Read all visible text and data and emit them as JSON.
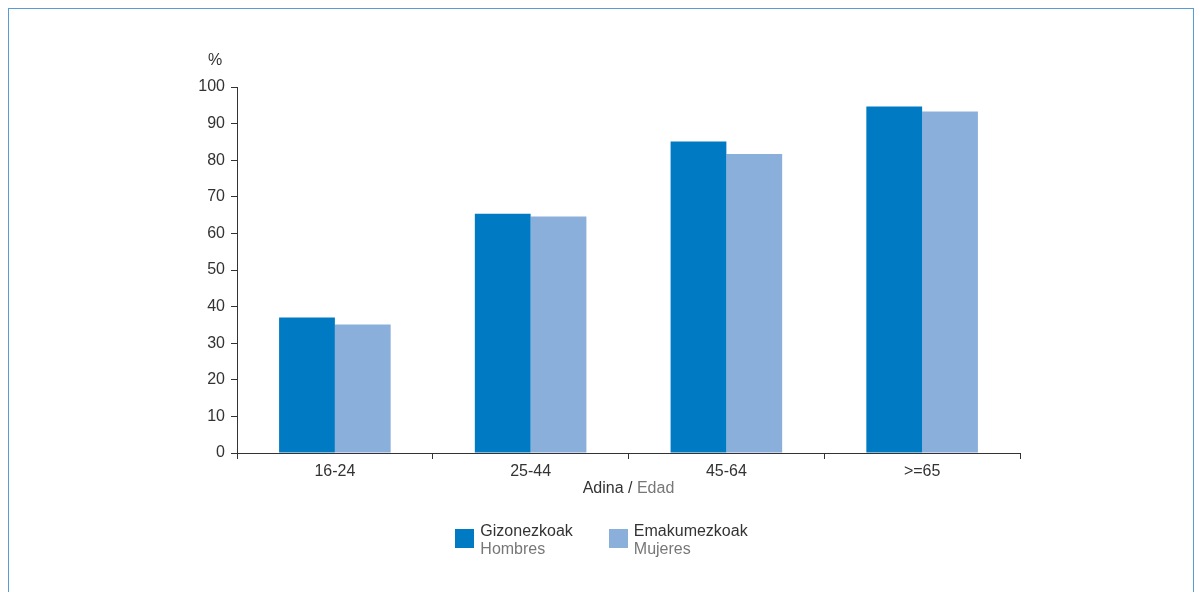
{
  "chart_data": {
    "type": "bar",
    "ylabel": "%",
    "xlabel": "Adina / Edad",
    "categories": [
      "16-24",
      "25-44",
      "45-64",
      ">=65"
    ],
    "series": [
      {
        "name": "Gizonezkoak\nHombres",
        "color": "#007ac2",
        "values": [
          37,
          65.4,
          85.1,
          94.7
        ]
      },
      {
        "name": "Emakumezkoak\nMujeres",
        "color": "#8aafdb",
        "values": [
          35.1,
          64.6,
          81.7,
          93.3
        ]
      }
    ],
    "ylim": [
      0,
      100
    ],
    "yticks": [
      0,
      10,
      20,
      30,
      40,
      50,
      60,
      70,
      80,
      90,
      100
    ],
    "grid": false,
    "legend": "bottom"
  }
}
